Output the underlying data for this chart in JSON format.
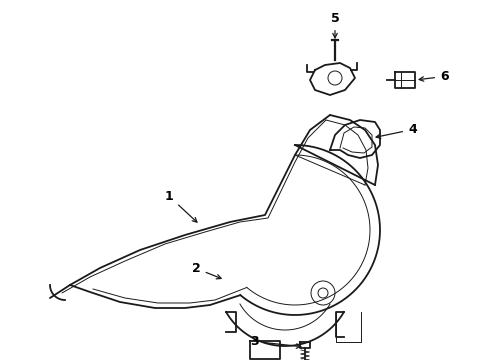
{
  "background_color": "#ffffff",
  "line_color": "#1a1a1a",
  "label_color": "#000000",
  "lw_main": 1.3,
  "lw_thin": 0.7,
  "lw_thick": 1.6
}
